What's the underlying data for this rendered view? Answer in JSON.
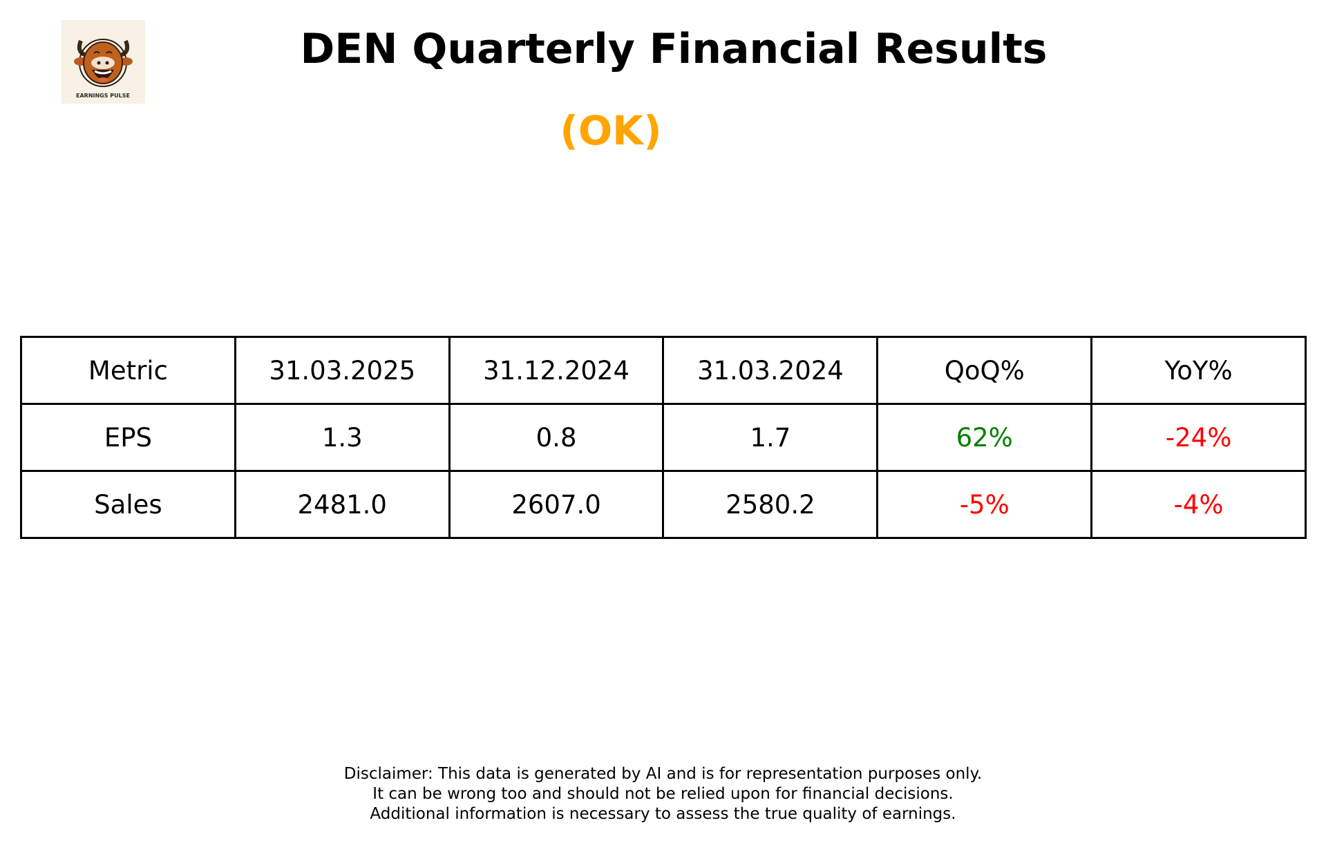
{
  "logo": {
    "text": "EARNINGS PULSE",
    "icon": "bull-mascot"
  },
  "title": "DEN Quarterly Financial Results",
  "status": {
    "label": "(OK)",
    "color": "#FFA500"
  },
  "chart_data": {
    "type": "table",
    "columns": [
      "Metric",
      "31.03.2025",
      "31.12.2024",
      "31.03.2024",
      "QoQ%",
      "YoY%"
    ],
    "rows": [
      {
        "cells": [
          "EPS",
          "1.3",
          "0.8",
          "1.7",
          "62%",
          "-24%"
        ],
        "colors": [
          "#000000",
          "#000000",
          "#000000",
          "#000000",
          "#008000",
          "#FF0000"
        ]
      },
      {
        "cells": [
          "Sales",
          "2481.0",
          "2607.0",
          "2580.2",
          "-5%",
          "-4%"
        ],
        "colors": [
          "#000000",
          "#000000",
          "#000000",
          "#000000",
          "#FF0000",
          "#FF0000"
        ]
      }
    ]
  },
  "disclaimer": [
    "Disclaimer: This data is generated by AI and is for representation purposes only.",
    "It can be wrong too and should not be relied upon for financial decisions.",
    "Additional information is necessary to assess the true quality of earnings."
  ]
}
